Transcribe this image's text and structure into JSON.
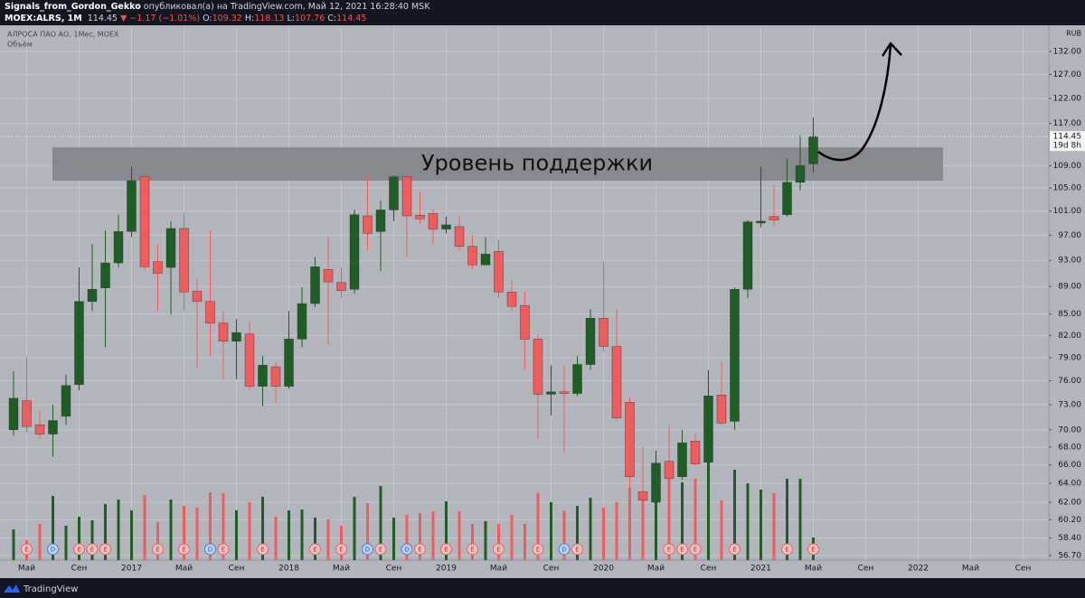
{
  "header": {
    "author": "Signals_from_Gordon_Gekko",
    "published": "опубликовал(а) на TradingView.com, Май 12, 2021 16:28:40 MSK",
    "symbol": "MOEX:ALRS, 1M",
    "last": "114.45",
    "arrow": "▼",
    "change": "−1.17 (−1.01%)",
    "o_label": "O:",
    "o": "109.32",
    "h_label": "H:",
    "h": "118.13",
    "l_label": "L:",
    "l": "107.76",
    "c_label": "C:",
    "c": "114.45"
  },
  "footer": {
    "brand": "TradingView"
  },
  "chart_data": {
    "type": "candlestick",
    "title": "АЛРОСА ПАО АО, 1Мес, MOEX",
    "volume_label": "Объём",
    "currency": "RUB",
    "categories": [
      null,
      "Май",
      null,
      null,
      null,
      "Сен",
      null,
      null,
      null,
      "2017",
      null,
      null,
      null,
      "Май",
      null,
      null,
      null,
      "Сен",
      null,
      null,
      null,
      "2018",
      null,
      null,
      null,
      "Май",
      null,
      null,
      null,
      "Сен",
      null,
      null,
      null,
      "2019",
      null,
      null,
      null,
      "Май",
      null,
      null,
      null,
      "Сен",
      null,
      null,
      null,
      "2020",
      null,
      null,
      null,
      "Май",
      null,
      null,
      null,
      "Сен",
      null,
      null,
      null,
      "2021",
      null,
      null,
      null,
      "Май",
      null,
      null,
      null,
      "Сен",
      null,
      null,
      null,
      "2022",
      null,
      null,
      null,
      "Май",
      null,
      null,
      null,
      "Сен",
      null,
      null
    ],
    "open": [
      70.0,
      73.5,
      70.6,
      69.5,
      71.6,
      75.5,
      86.8,
      88.8,
      92.6,
      97.6,
      107.0,
      92.8,
      91.9,
      98.1,
      88.3,
      86.8,
      83.7,
      81.2,
      82.2,
      75.3,
      77.8,
      75.3,
      81.5,
      86.5,
      91.6,
      89.6,
      88.6,
      100.2,
      97.6,
      101.2,
      107.0,
      100.3,
      100.6,
      98.0,
      98.4,
      95.2,
      92.3,
      94.4,
      88.2,
      86.2,
      81.5,
      74.3,
      74.6,
      74.4,
      78.1,
      84.4,
      80.5,
      73.3,
      63.1,
      62.0,
      66.4,
      64.7,
      68.7,
      66.3,
      74.2,
      71.0,
      88.6,
      99.0,
      100.1,
      100.4,
      106.0,
      109.32,
      null,
      null,
      null,
      null,
      null,
      null,
      null,
      null,
      null,
      null,
      null,
      null,
      null,
      null,
      null,
      null,
      null,
      null
    ],
    "high": [
      77.2,
      79.1,
      72.3,
      73.0,
      76.8,
      91.9,
      95.6,
      97.8,
      100.4,
      108.8,
      107.1,
      95.6,
      99.3,
      100.7,
      90.3,
      97.8,
      85.4,
      84.3,
      83.9,
      79.2,
      78.4,
      85.4,
      88.9,
      93.5,
      96.7,
      91.9,
      101.3,
      107.0,
      102.8,
      107.2,
      107.2,
      104.4,
      101.3,
      100.1,
      100.1,
      97.0,
      96.7,
      96.3,
      90.0,
      88.3,
      82.2,
      78.0,
      78.0,
      79.2,
      85.7,
      92.8,
      85.7,
      73.9,
      68.0,
      67.6,
      70.6,
      70.0,
      69.5,
      77.4,
      78.6,
      88.9,
      99.5,
      108.8,
      105.5,
      110.4,
      114.7,
      118.13,
      null,
      null,
      null,
      null,
      null,
      null,
      null,
      null,
      null,
      null,
      null,
      null,
      null,
      null,
      null,
      null,
      null,
      null
    ],
    "low": [
      69.3,
      69.7,
      69.0,
      66.9,
      70.6,
      74.8,
      85.4,
      80.4,
      91.9,
      96.7,
      91.4,
      85.4,
      85.0,
      85.4,
      77.6,
      79.2,
      76.2,
      76.2,
      74.8,
      72.8,
      73.3,
      75.0,
      80.4,
      86.0,
      80.7,
      87.3,
      88.0,
      94.5,
      91.4,
      99.3,
      93.5,
      98.9,
      95.6,
      97.3,
      94.5,
      91.6,
      92.8,
      87.3,
      85.4,
      77.4,
      69.0,
      71.7,
      67.4,
      74.1,
      77.4,
      79.8,
      71.1,
      63.5,
      62.1,
      61.1,
      63.5,
      64.4,
      65.9,
      65.9,
      70.6,
      70.0,
      87.3,
      98.3,
      98.6,
      100.1,
      104.6,
      107.76,
      null,
      null,
      null,
      null,
      null,
      null,
      null,
      null,
      null,
      null,
      null,
      null,
      null,
      null,
      null,
      null,
      null,
      null
    ],
    "close": [
      73.8,
      70.4,
      69.5,
      71.1,
      75.4,
      86.8,
      88.6,
      92.6,
      97.6,
      106.3,
      92.0,
      91.0,
      98.1,
      88.2,
      86.8,
      83.7,
      81.2,
      82.4,
      75.3,
      78.0,
      75.3,
      81.5,
      86.5,
      92.0,
      89.7,
      88.4,
      100.4,
      97.3,
      101.2,
      107.0,
      100.2,
      99.7,
      98.0,
      98.7,
      95.2,
      92.3,
      94.0,
      88.2,
      86.1,
      81.5,
      74.3,
      74.6,
      74.4,
      78.1,
      84.4,
      80.5,
      71.4,
      64.7,
      62.2,
      66.2,
      64.5,
      68.5,
      66.1,
      74.1,
      70.8,
      88.6,
      99.2,
      99.3,
      99.5,
      106.0,
      109.0,
      114.45,
      null,
      null,
      null,
      null,
      null,
      null,
      null,
      null,
      null,
      null,
      null,
      null,
      null,
      null,
      null,
      null,
      null,
      null
    ],
    "volume": [
      34,
      22,
      40,
      71,
      38,
      48,
      44,
      62,
      67,
      55,
      72,
      42,
      67,
      60,
      58,
      75,
      74,
      55,
      64,
      70,
      48,
      55,
      56,
      47,
      45,
      38,
      70,
      63,
      82,
      47,
      50,
      52,
      54,
      65,
      54,
      40,
      43,
      40,
      50,
      40,
      74,
      64,
      55,
      60,
      69,
      58,
      64,
      80,
      74,
      65,
      93,
      86,
      90,
      112,
      66,
      100,
      85,
      78,
      74,
      90,
      90,
      25,
      null,
      null,
      null,
      null,
      null,
      null,
      null,
      null,
      null,
      null,
      null,
      null,
      null,
      null,
      null,
      null,
      null,
      null
    ],
    "events": [
      null,
      "E",
      null,
      "D",
      null,
      "E",
      "E",
      "E",
      null,
      null,
      null,
      "E",
      null,
      "E",
      null,
      "D",
      "E",
      null,
      null,
      "E",
      null,
      null,
      null,
      "E",
      null,
      "E",
      null,
      "D",
      "E",
      null,
      "D",
      "E",
      null,
      "E",
      null,
      "E",
      null,
      "E",
      null,
      null,
      "E",
      null,
      "D",
      "E",
      null,
      null,
      null,
      null,
      null,
      null,
      "E",
      "E",
      "E",
      null,
      null,
      "E",
      null,
      null,
      null,
      "E",
      null,
      "E",
      null,
      null,
      null,
      null,
      null,
      null,
      null,
      null,
      null,
      null,
      null,
      null,
      null,
      null,
      null,
      null,
      null,
      null
    ],
    "up_color": "#1e5e24",
    "down_color": "#f05b5b",
    "log_scale": true,
    "grid": true,
    "ylim": [
      56.27,
      137.5
    ],
    "yticks": [
      {
        "value": 56.7,
        "label": "56.70"
      },
      {
        "value": 58.4,
        "label": "58.40"
      },
      {
        "value": 60.2,
        "label": "60.20"
      },
      {
        "value": 62,
        "label": "62.00"
      },
      {
        "value": 64,
        "label": "64.00"
      },
      {
        "value": 66,
        "label": "66.00"
      },
      {
        "value": 68,
        "label": "68.00"
      },
      {
        "value": 70,
        "label": "70.00"
      },
      {
        "value": 73,
        "label": "73.00"
      },
      {
        "value": 76,
        "label": "76.00"
      },
      {
        "value": 79,
        "label": "79.00"
      },
      {
        "value": 82,
        "label": "82.00"
      },
      {
        "value": 85,
        "label": "85.00"
      },
      {
        "value": 89,
        "label": "89.00"
      },
      {
        "value": 93,
        "label": "93.00"
      },
      {
        "value": 97,
        "label": "97.00"
      },
      {
        "value": 101,
        "label": "101.00"
      },
      {
        "value": 105,
        "label": "105.00"
      },
      {
        "value": 109,
        "label": "109.00"
      },
      {
        "value": 117,
        "label": "117.00"
      },
      {
        "value": 122,
        "label": "122.00"
      },
      {
        "value": 127,
        "label": "127.00"
      },
      {
        "value": 132,
        "label": "132.00"
      }
    ],
    "last_price": 114.45,
    "countdown": "19d 8h",
    "support_zone": [
      106.3,
      112.4
    ],
    "annotation": "Уровень поддержки"
  }
}
